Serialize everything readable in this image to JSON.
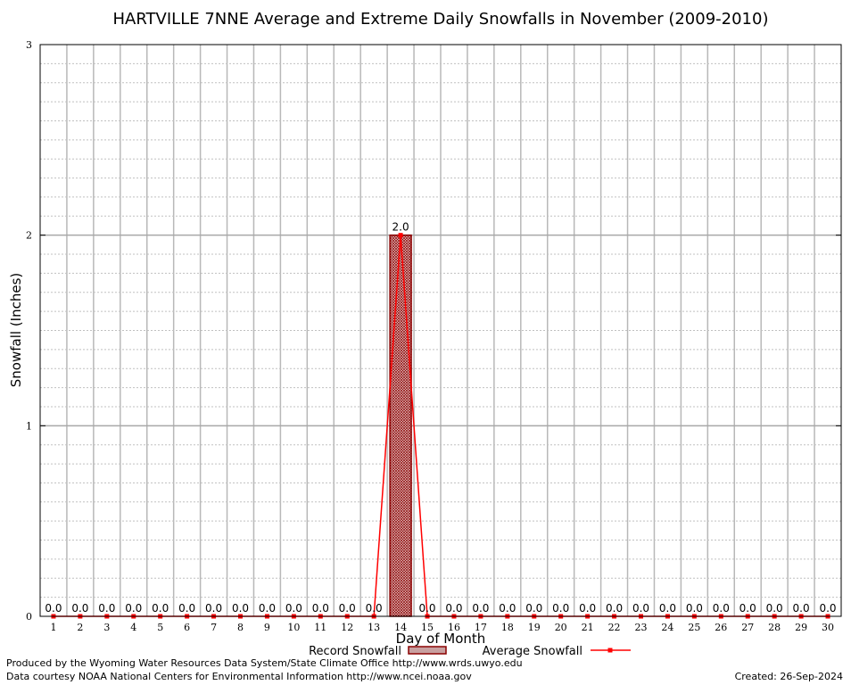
{
  "chart_data": {
    "type": "bar",
    "title": "HARTVILLE 7NNE Average and Extreme Daily Snowfalls in November (2009-2010)",
    "xlabel": "Day of Month",
    "ylabel": "Snowfall (Inches)",
    "ylim": [
      0,
      3
    ],
    "yticks": [
      "0",
      "1",
      "2",
      "3"
    ],
    "grid": true,
    "categories": [
      "1",
      "2",
      "3",
      "4",
      "5",
      "6",
      "7",
      "8",
      "9",
      "10",
      "11",
      "12",
      "13",
      "14",
      "15",
      "16",
      "17",
      "18",
      "19",
      "20",
      "21",
      "22",
      "23",
      "24",
      "25",
      "26",
      "27",
      "28",
      "29",
      "30"
    ],
    "series": [
      {
        "name": "Record Snowfall",
        "type": "bar",
        "color": "#8b0000",
        "values": [
          0,
          0,
          0,
          0,
          0,
          0,
          0,
          0,
          0,
          0,
          0,
          0,
          0,
          2.0,
          0,
          0,
          0,
          0,
          0,
          0,
          0,
          0,
          0,
          0,
          0,
          0,
          0,
          0,
          0,
          0
        ]
      },
      {
        "name": "Average Snowfall",
        "type": "line",
        "color": "#ff0000",
        "values": [
          0,
          0,
          0,
          0,
          0,
          0,
          0,
          0,
          0,
          0,
          0,
          0,
          0,
          2.0,
          0,
          0,
          0,
          0,
          0,
          0,
          0,
          0,
          0,
          0,
          0,
          0,
          0,
          0,
          0,
          0
        ]
      }
    ],
    "data_labels": [
      "0.0",
      "0.0",
      "0.0",
      "0.0",
      "0.0",
      "0.0",
      "0.0",
      "0.0",
      "0.0",
      "0.0",
      "0.0",
      "0.0",
      "0.0",
      "2.0",
      "0.0",
      "0.0",
      "0.0",
      "0.0",
      "0.0",
      "0.0",
      "0.0",
      "0.0",
      "0.0",
      "0.0",
      "0.0",
      "0.0",
      "0.0",
      "0.0",
      "0.0",
      "0.0"
    ],
    "legend_placement": "bottom"
  },
  "footer": {
    "produced_by": "Produced by the Wyoming Water Resources Data System/State Climate Office http://www.wrds.uwyo.edu",
    "courtesy": "Data courtesy NOAA National Centers for Environmental Information http://www.ncei.noaa.gov",
    "created": "Created:  26-Sep-2024"
  }
}
